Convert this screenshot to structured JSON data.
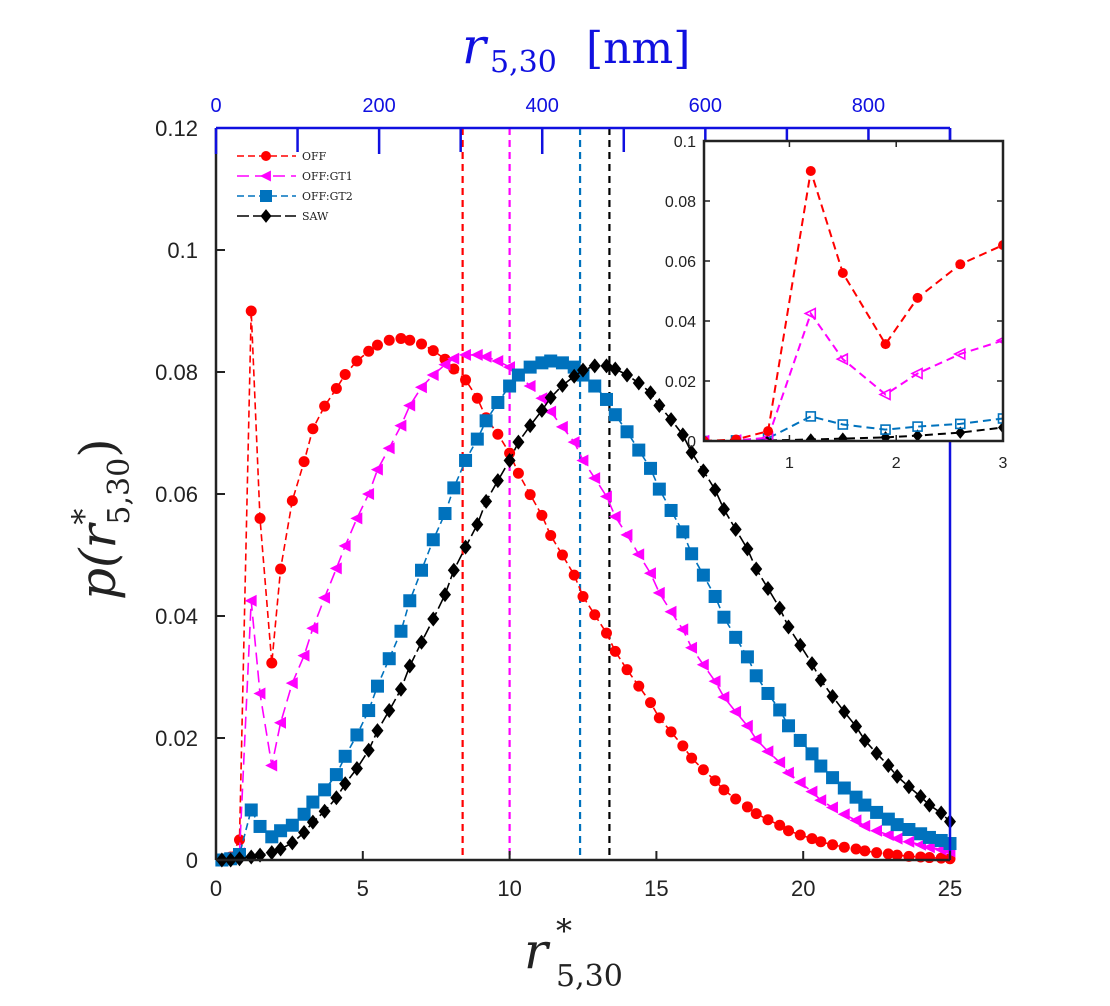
{
  "chart_data": {
    "type": "line",
    "xlabel": {
      "main": "r",
      "sup": "*",
      "sub": "5,30"
    },
    "ylabel": {
      "pre": "p(",
      "main": "r",
      "sup": "*",
      "sub": "5,30",
      "post": ")"
    },
    "top_axis_label": {
      "main": "r",
      "sub": "5,30",
      "unit": "[nm]"
    },
    "xlim": [
      0,
      25
    ],
    "ylim": [
      0,
      0.12
    ],
    "xticks": [
      "0",
      "5",
      "10",
      "15",
      "20",
      "25"
    ],
    "yticks": [
      "0",
      "0.02",
      "0.04",
      "0.06",
      "0.08",
      "0.1",
      "0.12"
    ],
    "top_xlim": [
      0,
      900
    ],
    "top_xticks": [
      "0",
      "200",
      "400",
      "600",
      "800"
    ],
    "legend_position": "top-left",
    "grid": false,
    "colors": {
      "OFF": "#ff0000",
      "OFF:GT1": "#ff00ff",
      "OFF:GT2": "#0072bd",
      "SAW": "#000000",
      "top_axis": "#1010e0"
    },
    "series": [
      {
        "name": "OFF",
        "color": "#ff0000",
        "marker": "circle",
        "mean_line": 8.4,
        "x": [
          0.2,
          0.5,
          0.8,
          1.2,
          1.5,
          1.9,
          2.2,
          2.6,
          3.0,
          3.3,
          3.7,
          4.1,
          4.4,
          4.8,
          5.2,
          5.5,
          5.9,
          6.3,
          6.6,
          7.0,
          7.4,
          7.8,
          8.1,
          8.5,
          8.9,
          9.2,
          9.6,
          10.0,
          10.3,
          10.7,
          11.1,
          11.4,
          11.8,
          12.2,
          12.5,
          12.9,
          13.3,
          13.6,
          14.0,
          14.4,
          14.8,
          15.1,
          15.5,
          15.9,
          16.2,
          16.6,
          17.0,
          17.3,
          17.7,
          18.1,
          18.4,
          18.8,
          19.2,
          19.5,
          19.9,
          20.3,
          20.6,
          21.0,
          21.4,
          21.8,
          22.1,
          22.5,
          22.9,
          23.2,
          23.6,
          24.0,
          24.3,
          24.7,
          25.0
        ],
        "y": [
          0.0,
          0.0005,
          0.0033,
          0.09,
          0.056,
          0.0323,
          0.0477,
          0.0589,
          0.0653,
          0.0707,
          0.0744,
          0.0773,
          0.0796,
          0.0818,
          0.0834,
          0.0844,
          0.0852,
          0.0855,
          0.0852,
          0.0846,
          0.0835,
          0.0821,
          0.0805,
          0.0787,
          0.0757,
          0.0725,
          0.0698,
          0.0667,
          0.0634,
          0.0599,
          0.0565,
          0.0532,
          0.05,
          0.0467,
          0.0432,
          0.0402,
          0.0372,
          0.0342,
          0.0312,
          0.0285,
          0.0258,
          0.0233,
          0.021,
          0.0187,
          0.0167,
          0.0148,
          0.013,
          0.0115,
          0.01,
          0.0087,
          0.0076,
          0.0066,
          0.0057,
          0.0048,
          0.0041,
          0.0035,
          0.003,
          0.0025,
          0.0021,
          0.0018,
          0.0015,
          0.0012,
          0.001,
          0.0008,
          0.0006,
          0.0005,
          0.0004,
          0.0003,
          0.0002
        ]
      },
      {
        "name": "OFF:GT1",
        "color": "#ff00ff",
        "marker": "triangle-left",
        "mean_line": 10.0,
        "x": [
          0.2,
          0.5,
          0.8,
          1.2,
          1.5,
          1.9,
          2.2,
          2.6,
          3.0,
          3.3,
          3.7,
          4.1,
          4.4,
          4.8,
          5.2,
          5.5,
          5.9,
          6.3,
          6.6,
          7.0,
          7.4,
          7.8,
          8.1,
          8.5,
          8.9,
          9.2,
          9.6,
          10.0,
          10.3,
          10.7,
          11.1,
          11.4,
          11.8,
          12.2,
          12.5,
          12.9,
          13.3,
          13.6,
          14.0,
          14.4,
          14.8,
          15.1,
          15.5,
          15.9,
          16.2,
          16.6,
          17.0,
          17.3,
          17.7,
          18.1,
          18.4,
          18.8,
          19.2,
          19.5,
          19.9,
          20.3,
          20.6,
          21.0,
          21.4,
          21.8,
          22.1,
          22.5,
          22.9,
          23.2,
          23.6,
          24.0,
          24.3,
          24.7,
          25.0
        ],
        "y": [
          0.0,
          0.0002,
          0.0011,
          0.0425,
          0.0273,
          0.0155,
          0.0225,
          0.029,
          0.0335,
          0.038,
          0.043,
          0.0478,
          0.0515,
          0.056,
          0.06,
          0.064,
          0.0675,
          0.0712,
          0.0745,
          0.0775,
          0.0795,
          0.0812,
          0.0822,
          0.0828,
          0.0828,
          0.0825,
          0.0818,
          0.0808,
          0.0795,
          0.0777,
          0.0757,
          0.0735,
          0.071,
          0.0685,
          0.0655,
          0.0626,
          0.0596,
          0.0563,
          0.0533,
          0.0501,
          0.047,
          0.0438,
          0.0407,
          0.0378,
          0.0348,
          0.032,
          0.0293,
          0.0267,
          0.0243,
          0.022,
          0.0198,
          0.0178,
          0.016,
          0.0143,
          0.0127,
          0.0112,
          0.0098,
          0.0086,
          0.0075,
          0.0065,
          0.0056,
          0.0048,
          0.0041,
          0.0035,
          0.003,
          0.0025,
          0.0021,
          0.0017,
          0.0014
        ]
      },
      {
        "name": "OFF:GT2",
        "color": "#0072bd",
        "marker": "square",
        "mean_line": 12.4,
        "x": [
          0.2,
          0.5,
          0.8,
          1.2,
          1.5,
          1.9,
          2.2,
          2.6,
          3.0,
          3.3,
          3.7,
          4.1,
          4.4,
          4.8,
          5.2,
          5.5,
          5.9,
          6.3,
          6.6,
          7.0,
          7.4,
          7.8,
          8.1,
          8.5,
          8.9,
          9.2,
          9.6,
          10.0,
          10.3,
          10.7,
          11.1,
          11.4,
          11.8,
          12.2,
          12.5,
          12.9,
          13.3,
          13.6,
          14.0,
          14.4,
          14.8,
          15.1,
          15.5,
          15.9,
          16.2,
          16.6,
          17.0,
          17.3,
          17.7,
          18.1,
          18.4,
          18.8,
          19.2,
          19.5,
          19.9,
          20.3,
          20.6,
          21.0,
          21.4,
          21.8,
          22.1,
          22.5,
          22.9,
          23.2,
          23.6,
          24.0,
          24.3,
          24.7,
          25.0
        ],
        "y": [
          0.0,
          0.0002,
          0.0009,
          0.0082,
          0.0055,
          0.0038,
          0.0048,
          0.0057,
          0.0075,
          0.0095,
          0.0115,
          0.014,
          0.017,
          0.0205,
          0.0245,
          0.0285,
          0.033,
          0.0375,
          0.0425,
          0.0475,
          0.0525,
          0.0568,
          0.061,
          0.0655,
          0.069,
          0.072,
          0.075,
          0.0777,
          0.0795,
          0.0808,
          0.0815,
          0.0818,
          0.0815,
          0.0808,
          0.0795,
          0.0777,
          0.0755,
          0.073,
          0.0702,
          0.0672,
          0.0642,
          0.0608,
          0.0573,
          0.0538,
          0.0502,
          0.0467,
          0.0432,
          0.0398,
          0.0365,
          0.0333,
          0.0302,
          0.0273,
          0.0246,
          0.022,
          0.0196,
          0.0174,
          0.0154,
          0.0135,
          0.0118,
          0.0103,
          0.009,
          0.0078,
          0.0067,
          0.0058,
          0.005,
          0.0043,
          0.0037,
          0.0032,
          0.0027
        ]
      },
      {
        "name": "SAW",
        "color": "#000000",
        "marker": "diamond",
        "mean_line": 13.4,
        "x": [
          0.2,
          0.5,
          0.8,
          1.2,
          1.5,
          1.9,
          2.2,
          2.6,
          3.0,
          3.3,
          3.7,
          4.1,
          4.4,
          4.8,
          5.2,
          5.5,
          5.9,
          6.3,
          6.6,
          7.0,
          7.4,
          7.8,
          8.1,
          8.5,
          8.9,
          9.2,
          9.6,
          10.0,
          10.3,
          10.7,
          11.1,
          11.4,
          11.8,
          12.2,
          12.5,
          12.9,
          13.3,
          13.6,
          14.0,
          14.4,
          14.8,
          15.1,
          15.5,
          15.9,
          16.2,
          16.6,
          17.0,
          17.3,
          17.7,
          18.1,
          18.4,
          18.8,
          19.2,
          19.5,
          19.9,
          20.3,
          20.6,
          21.0,
          21.4,
          21.8,
          22.1,
          22.5,
          22.9,
          23.2,
          23.6,
          24.0,
          24.3,
          24.7,
          25.0
        ],
        "y": [
          0.0,
          0.0,
          0.0002,
          0.0005,
          0.0008,
          0.0012,
          0.0018,
          0.0028,
          0.0045,
          0.0062,
          0.008,
          0.0102,
          0.0125,
          0.015,
          0.018,
          0.0212,
          0.0245,
          0.028,
          0.0318,
          0.0357,
          0.0395,
          0.0435,
          0.0475,
          0.0513,
          0.055,
          0.0588,
          0.0622,
          0.0655,
          0.0685,
          0.0712,
          0.0737,
          0.0758,
          0.0778,
          0.0793,
          0.0803,
          0.081,
          0.081,
          0.0805,
          0.0795,
          0.0782,
          0.0766,
          0.0745,
          0.0722,
          0.0697,
          0.0668,
          0.0638,
          0.0607,
          0.0575,
          0.0542,
          0.051,
          0.0477,
          0.0445,
          0.0413,
          0.0382,
          0.0352,
          0.0322,
          0.0295,
          0.0268,
          0.0243,
          0.0219,
          0.0196,
          0.0175,
          0.0155,
          0.0137,
          0.012,
          0.0104,
          0.009,
          0.0077,
          0.0063
        ]
      }
    ],
    "inset": {
      "xlim": [
        0.2,
        3.0
      ],
      "ylim": [
        0,
        0.1
      ],
      "xticks": [
        "1",
        "2",
        "3"
      ],
      "yticks": [
        "0",
        "0.02",
        "0.04",
        "0.06",
        "0.08",
        "0.1"
      ]
    }
  }
}
